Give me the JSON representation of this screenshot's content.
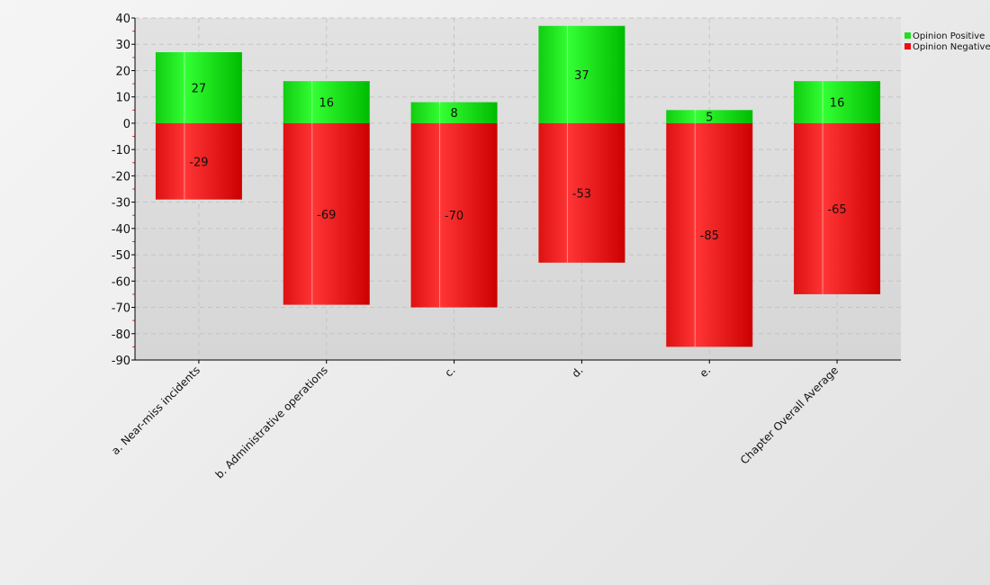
{
  "chart_data": {
    "type": "bar",
    "stacked": true,
    "categories": [
      "a. Near-miss incidents",
      "b. Administrative operations",
      "c.",
      "d.",
      "e.",
      "Chapter Overall Average"
    ],
    "series": [
      {
        "name": "Opinion Positive",
        "color": "#22dd22",
        "values": [
          27,
          16,
          8,
          37,
          5,
          16
        ]
      },
      {
        "name": "Opinion Negative",
        "color": "#ee1111",
        "values": [
          -29,
          -69,
          -70,
          -53,
          -85,
          -65
        ]
      }
    ],
    "ylim": [
      -90,
      40
    ],
    "yticks": [
      40,
      30,
      20,
      10,
      0,
      -10,
      -20,
      -30,
      -40,
      -50,
      -60,
      -70,
      -80,
      -90
    ],
    "grid": true,
    "legend": "top-right",
    "data_labels": true
  }
}
